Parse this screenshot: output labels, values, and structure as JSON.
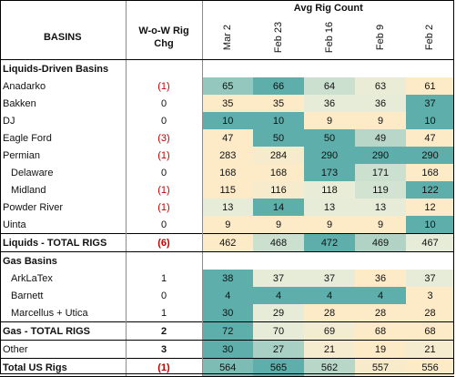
{
  "header": {
    "basins_label": "BASINS",
    "wow_label_1": "W-o-W Rig",
    "wow_label_2": "Chg",
    "avg_label": "Avg Rig Count",
    "dates": [
      "Mar 2",
      "Feb 23",
      "Feb 16",
      "Feb 9",
      "Feb 2"
    ]
  },
  "rows": [
    {
      "type": "section",
      "name": "Liquids-Driven Basins"
    },
    {
      "type": "data",
      "name": "Anadarko",
      "chg": "(1)",
      "neg": true,
      "values": [
        65,
        66,
        64,
        63,
        61
      ]
    },
    {
      "type": "data",
      "name": "Bakken",
      "chg": "0",
      "neg": false,
      "values": [
        35,
        35,
        36,
        36,
        37
      ]
    },
    {
      "type": "data",
      "name": "DJ",
      "chg": "0",
      "neg": false,
      "values": [
        10,
        10,
        9,
        9,
        10
      ]
    },
    {
      "type": "data",
      "name": "Eagle Ford",
      "chg": "(3)",
      "neg": true,
      "values": [
        47,
        50,
        50,
        49,
        47
      ]
    },
    {
      "type": "data",
      "name": "Permian",
      "chg": "(1)",
      "neg": true,
      "values": [
        283,
        284,
        290,
        290,
        290
      ]
    },
    {
      "type": "data",
      "name": "Delaware",
      "indent": true,
      "chg": "0",
      "neg": false,
      "values": [
        168,
        168,
        173,
        171,
        168
      ]
    },
    {
      "type": "data",
      "name": "Midland",
      "indent": true,
      "chg": "(1)",
      "neg": true,
      "values": [
        115,
        116,
        118,
        119,
        122
      ]
    },
    {
      "type": "data",
      "name": "Powder River",
      "chg": "(1)",
      "neg": true,
      "values": [
        13,
        14,
        13,
        13,
        12
      ]
    },
    {
      "type": "data",
      "name": "Uinta",
      "chg": "0",
      "neg": false,
      "values": [
        9,
        9,
        9,
        9,
        10
      ]
    },
    {
      "type": "total",
      "name": "Liquids - TOTAL RIGS",
      "chg": "(6)",
      "neg": true,
      "values": [
        462,
        468,
        472,
        469,
        467
      ]
    },
    {
      "type": "section",
      "name": "Gas Basins"
    },
    {
      "type": "data",
      "name": "ArkLaTex",
      "indent": true,
      "chg": "1",
      "neg": false,
      "values": [
        38,
        37,
        37,
        36,
        37
      ]
    },
    {
      "type": "data",
      "name": "Barnett",
      "indent": true,
      "chg": "0",
      "neg": false,
      "values": [
        4,
        4,
        4,
        4,
        3
      ]
    },
    {
      "type": "data",
      "name": "Marcellus + Utica",
      "indent": true,
      "chg": "1",
      "neg": false,
      "values": [
        30,
        29,
        28,
        28,
        28
      ]
    },
    {
      "type": "total",
      "name": "Gas - TOTAL RIGS",
      "chg": "2",
      "neg": false,
      "values": [
        72,
        70,
        69,
        68,
        68
      ]
    },
    {
      "type": "data",
      "name": "Other",
      "chg": "3",
      "neg": false,
      "boldchg": true,
      "values": [
        30,
        27,
        21,
        19,
        21
      ]
    },
    {
      "type": "total",
      "name": "Total US Rigs",
      "chg": "(1)",
      "neg": true,
      "last": true,
      "values": [
        564,
        565,
        562,
        557,
        556
      ]
    }
  ],
  "colors": {
    "heat_high": "#5eaeab",
    "heat_mid": "#e6ecd8",
    "heat_low": "#fdebc8",
    "negative": "#c00000"
  }
}
